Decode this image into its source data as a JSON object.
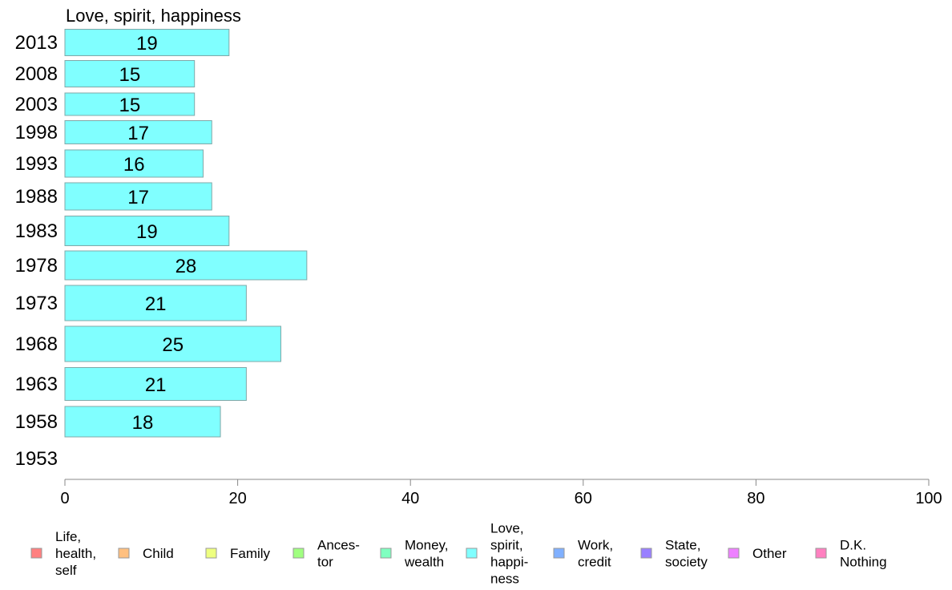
{
  "chart_data": {
    "type": "bar",
    "orientation": "horizontal",
    "title": "Love, spirit, happiness",
    "categories": [
      "2013",
      "2008",
      "2003",
      "1998",
      "1993",
      "1988",
      "1983",
      "1978",
      "1973",
      "1968",
      "1963",
      "1958",
      "1953"
    ],
    "series": [
      {
        "name": "Love, spirit, happiness",
        "color": "#80ffff",
        "values": [
          19,
          15,
          15,
          17,
          16,
          17,
          19,
          28,
          21,
          25,
          21,
          18,
          null
        ],
        "labels": [
          "19",
          "15",
          "15",
          "17",
          "16",
          "17",
          "19",
          "28",
          "21",
          "25",
          "21",
          "18",
          ""
        ]
      }
    ],
    "xlim": [
      0,
      100
    ],
    "xticks": [
      "0",
      "20",
      "40",
      "60",
      "80",
      "100"
    ],
    "grid": false,
    "legend_position": "bottom",
    "legend": [
      {
        "lines": [
          "Life,",
          "health,",
          "self"
        ],
        "color": "#ff8080"
      },
      {
        "lines": [
          "Child"
        ],
        "color": "#ffc080"
      },
      {
        "lines": [
          "Family"
        ],
        "color": "#eeff80"
      },
      {
        "lines": [
          "Ances-",
          "tor"
        ],
        "color": "#a0ff80"
      },
      {
        "lines": [
          "Money,",
          "wealth"
        ],
        "color": "#80ffc0"
      },
      {
        "lines": [
          "Love,",
          "spirit,",
          "happi-",
          "ness"
        ],
        "color": "#80ffff"
      },
      {
        "lines": [
          "Work,",
          "credit"
        ],
        "color": "#80b0ff"
      },
      {
        "lines": [
          "State,",
          "society"
        ],
        "color": "#9980ff"
      },
      {
        "lines": [
          "Other"
        ],
        "color": "#ee80ff"
      },
      {
        "lines": [
          "D.K.",
          "Nothing"
        ],
        "color": "#ff80c0"
      }
    ]
  }
}
